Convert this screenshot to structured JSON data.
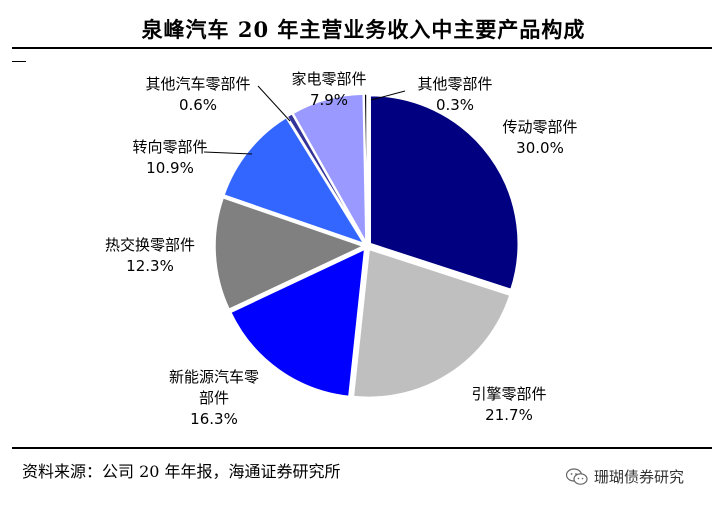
{
  "title": "泉峰汽车 20 年主营业务收入中主要产品构成",
  "source": "资料来源：公司 20 年年报，海通证券研究所",
  "watermark": "珊瑚债券研究",
  "chart_data": {
    "type": "pie",
    "title": "泉峰汽车 20 年主营业务收入中主要产品构成",
    "slices": [
      {
        "label": [
          "传动零部件"
        ],
        "value": 30.0,
        "pct": "30.0%",
        "color": "#000080"
      },
      {
        "label": [
          "引擎零部件"
        ],
        "value": 21.7,
        "pct": "21.7%",
        "color": "#BFBFBF"
      },
      {
        "label": [
          "新能源汽车零",
          "部件"
        ],
        "value": 16.3,
        "pct": "16.3%",
        "color": "#0000FF"
      },
      {
        "label": [
          "热交换零部件"
        ],
        "value": 12.3,
        "pct": "12.3%",
        "color": "#808080"
      },
      {
        "label": [
          "转向零部件"
        ],
        "value": 10.9,
        "pct": "10.9%",
        "color": "#3366FF"
      },
      {
        "label": [
          "其他汽车零部件"
        ],
        "value": 0.6,
        "pct": "0.6%",
        "color": "#333399"
      },
      {
        "label": [
          "家电零部件"
        ],
        "value": 7.9,
        "pct": "7.9%",
        "color": "#9999FF"
      },
      {
        "label": [
          "其他零部件"
        ],
        "value": 0.3,
        "pct": "0.3%",
        "color": "#000000"
      }
    ]
  }
}
